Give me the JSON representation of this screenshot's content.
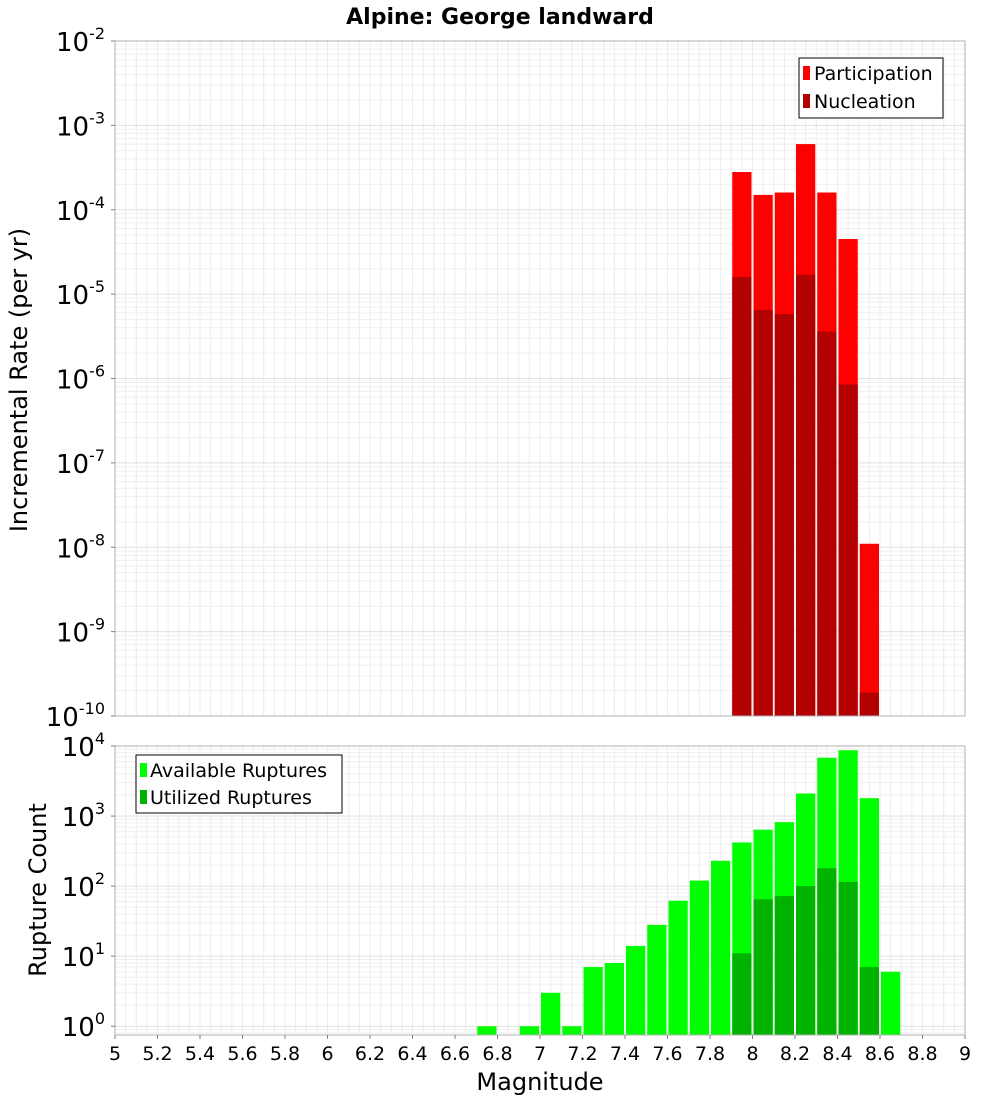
{
  "chart_data": [
    {
      "type": "bar",
      "title": "Alpine: George landward",
      "xlabel": "",
      "ylabel": "Incremental Rate (per yr)",
      "yscale": "log",
      "ylim": [
        1e-10,
        0.01
      ],
      "ytick_exponents": [
        -10,
        -9,
        -8,
        -7,
        -6,
        -5,
        -4,
        -3,
        -2
      ],
      "xlim": [
        5,
        9
      ],
      "grid": true,
      "legend_position": "top-right",
      "legend": [
        "Participation",
        "Nucleation"
      ],
      "bin_width": 0.1,
      "x": [
        7.95,
        8.05,
        8.15,
        8.25,
        8.35,
        8.45,
        8.55
      ],
      "series": [
        {
          "name": "Participation",
          "color": "#ff0000",
          "values": [
            0.00028,
            0.00015,
            0.00016,
            0.0006,
            0.00016,
            4.5e-05,
            1.1e-08
          ]
        },
        {
          "name": "Nucleation",
          "color": "#b30000",
          "values": [
            1.6e-05,
            6.5e-06,
            5.8e-06,
            1.7e-05,
            3.6e-06,
            8.5e-07,
            1.9e-10
          ]
        }
      ]
    },
    {
      "type": "bar",
      "title": "",
      "xlabel": "Magnitude",
      "ylabel": "Rupture Count",
      "yscale": "log",
      "ylim": [
        0.75,
        10000
      ],
      "ytick_exponents": [
        0,
        1,
        2,
        3,
        4
      ],
      "xlim": [
        5,
        9
      ],
      "xticks": [
        "5",
        "5.2",
        "5.4",
        "5.6",
        "5.8",
        "6",
        "6.2",
        "6.4",
        "6.6",
        "6.8",
        "7",
        "7.2",
        "7.4",
        "7.6",
        "7.8",
        "8",
        "8.2",
        "8.4",
        "8.6",
        "8.8",
        "9"
      ],
      "grid": true,
      "legend_position": "top-left",
      "legend": [
        "Available Ruptures",
        "Utilized Ruptures"
      ],
      "bin_width": 0.1,
      "series": [
        {
          "name": "Available Ruptures",
          "color": "#00ff00",
          "x": [
            6.75,
            6.95,
            7.05,
            7.15,
            7.25,
            7.35,
            7.45,
            7.55,
            7.65,
            7.75,
            7.85,
            7.95,
            8.05,
            8.15,
            8.25,
            8.35,
            8.45,
            8.55,
            8.65
          ],
          "values": [
            1,
            1,
            3,
            1,
            7,
            8,
            14,
            28,
            62,
            120,
            230,
            420,
            640,
            820,
            2100,
            6800,
            8700,
            1800,
            6
          ]
        },
        {
          "name": "Utilized Ruptures",
          "color": "#00b300",
          "x": [
            7.95,
            8.05,
            8.15,
            8.25,
            8.35,
            8.45,
            8.55
          ],
          "values": [
            11,
            65,
            72,
            100,
            180,
            115,
            7
          ]
        }
      ]
    }
  ]
}
